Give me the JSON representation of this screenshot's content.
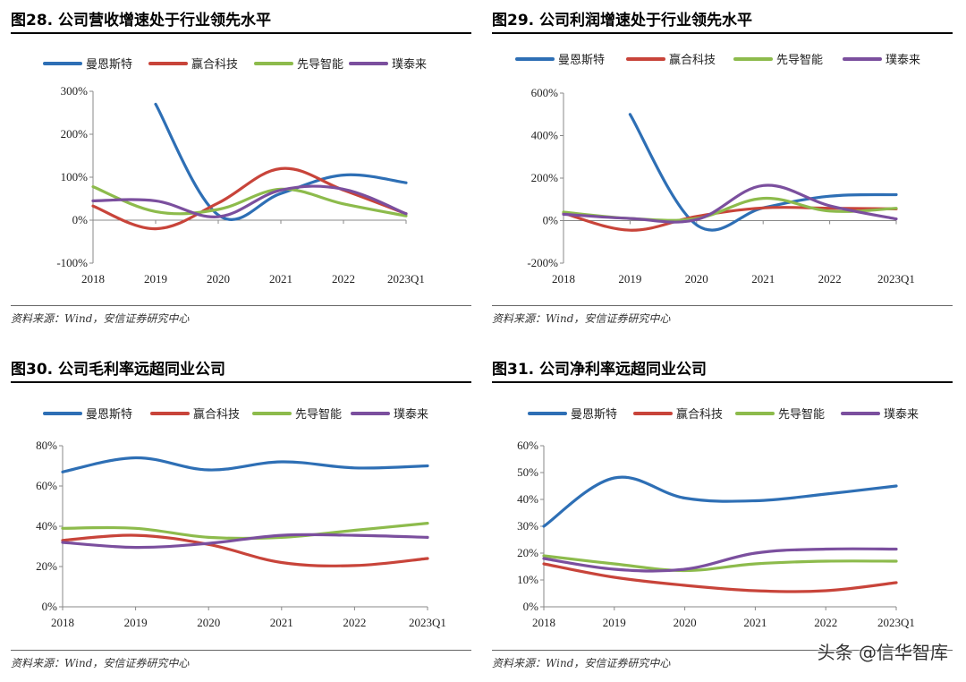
{
  "source_text": "资料来源：Wind，安信证券研究中心",
  "watermark": "头条 @信华智库",
  "colors": {
    "曼恩斯特": "#2e6fb5",
    "赢合科技": "#c8443a",
    "先导智能": "#8dbb4c",
    "璞泰来": "#7b4f9e"
  },
  "chart_data": [
    {
      "type": "line",
      "title": "图28. 公司营收增速处于行业领先水平",
      "categories": [
        "2018",
        "2019",
        "2020",
        "2021",
        "2022",
        "2023Q1"
      ],
      "ylim": [
        -100,
        300
      ],
      "ytick_labels": [
        "-100%",
        "0%",
        "100%",
        "200%",
        "300%"
      ],
      "yticks": [
        -100,
        0,
        100,
        200,
        300
      ],
      "legend": [
        "曼恩斯特",
        "赢合科技",
        "先导智能",
        "璞泰来"
      ],
      "series": [
        {
          "name": "曼恩斯特",
          "values": [
            null,
            270,
            12,
            62,
            105,
            87
          ]
        },
        {
          "name": "赢合科技",
          "values": [
            33,
            -20,
            40,
            120,
            70,
            15
          ]
        },
        {
          "name": "先导智能",
          "values": [
            78,
            20,
            25,
            72,
            38,
            10
          ]
        },
        {
          "name": "璞泰来",
          "values": [
            45,
            45,
            8,
            70,
            72,
            15
          ]
        }
      ]
    },
    {
      "type": "line",
      "title": "图29. 公司利润增速处于行业领先水平",
      "categories": [
        "2018",
        "2019",
        "2020",
        "2021",
        "2022",
        "2023Q1"
      ],
      "ylim": [
        -200,
        600
      ],
      "ytick_labels": [
        "-200%",
        "0%",
        "200%",
        "400%",
        "600%"
      ],
      "yticks": [
        -200,
        0,
        200,
        400,
        600
      ],
      "legend": [
        "曼恩斯特",
        "赢合科技",
        "先导智能",
        "璞泰来"
      ],
      "series": [
        {
          "name": "曼恩斯特",
          "values": [
            null,
            500,
            -20,
            60,
            115,
            122
          ]
        },
        {
          "name": "赢合科技",
          "values": [
            35,
            -45,
            20,
            60,
            58,
            55
          ]
        },
        {
          "name": "先导智能",
          "values": [
            40,
            10,
            10,
            105,
            45,
            58
          ]
        },
        {
          "name": "璞泰来",
          "values": [
            30,
            10,
            5,
            165,
            70,
            8
          ]
        }
      ]
    },
    {
      "type": "line",
      "title": "图30. 公司毛利率远超同业公司",
      "categories": [
        "2018",
        "2019",
        "2020",
        "2021",
        "2022",
        "2023Q1"
      ],
      "ylim": [
        0,
        80
      ],
      "ytick_labels": [
        "0%",
        "20%",
        "40%",
        "60%",
        "80%"
      ],
      "yticks": [
        0,
        20,
        40,
        60,
        80
      ],
      "legend": [
        "曼恩斯特",
        "赢合科技",
        "先导智能",
        "璞泰来"
      ],
      "series": [
        {
          "name": "曼恩斯特",
          "values": [
            67,
            74,
            68,
            72,
            69,
            70
          ]
        },
        {
          "name": "赢合科技",
          "values": [
            33,
            35.5,
            31,
            22,
            20.5,
            24
          ]
        },
        {
          "name": "先导智能",
          "values": [
            39,
            39,
            34.5,
            34.5,
            38,
            41.5
          ]
        },
        {
          "name": "璞泰来",
          "values": [
            32,
            29.5,
            31.5,
            35.5,
            35.5,
            34.5
          ]
        }
      ]
    },
    {
      "type": "line",
      "title": "图31. 公司净利率远超同业公司",
      "categories": [
        "2018",
        "2019",
        "2020",
        "2021",
        "2022",
        "2023Q1"
      ],
      "ylim": [
        0,
        60
      ],
      "ytick_labels": [
        "0%",
        "10%",
        "20%",
        "30%",
        "40%",
        "50%",
        "60%"
      ],
      "yticks": [
        0,
        10,
        20,
        30,
        40,
        50,
        60
      ],
      "legend": [
        "曼恩斯特",
        "赢合科技",
        "先导智能",
        "璞泰来"
      ],
      "series": [
        {
          "name": "曼恩斯特",
          "values": [
            30,
            48,
            40.5,
            39.5,
            42,
            45
          ]
        },
        {
          "name": "赢合科技",
          "values": [
            16,
            11,
            8,
            6,
            6,
            9
          ]
        },
        {
          "name": "先导智能",
          "values": [
            19,
            16,
            13.5,
            16,
            17,
            17
          ]
        },
        {
          "name": "璞泰来",
          "values": [
            18,
            14,
            14,
            20,
            21.5,
            21.5
          ]
        }
      ]
    }
  ]
}
